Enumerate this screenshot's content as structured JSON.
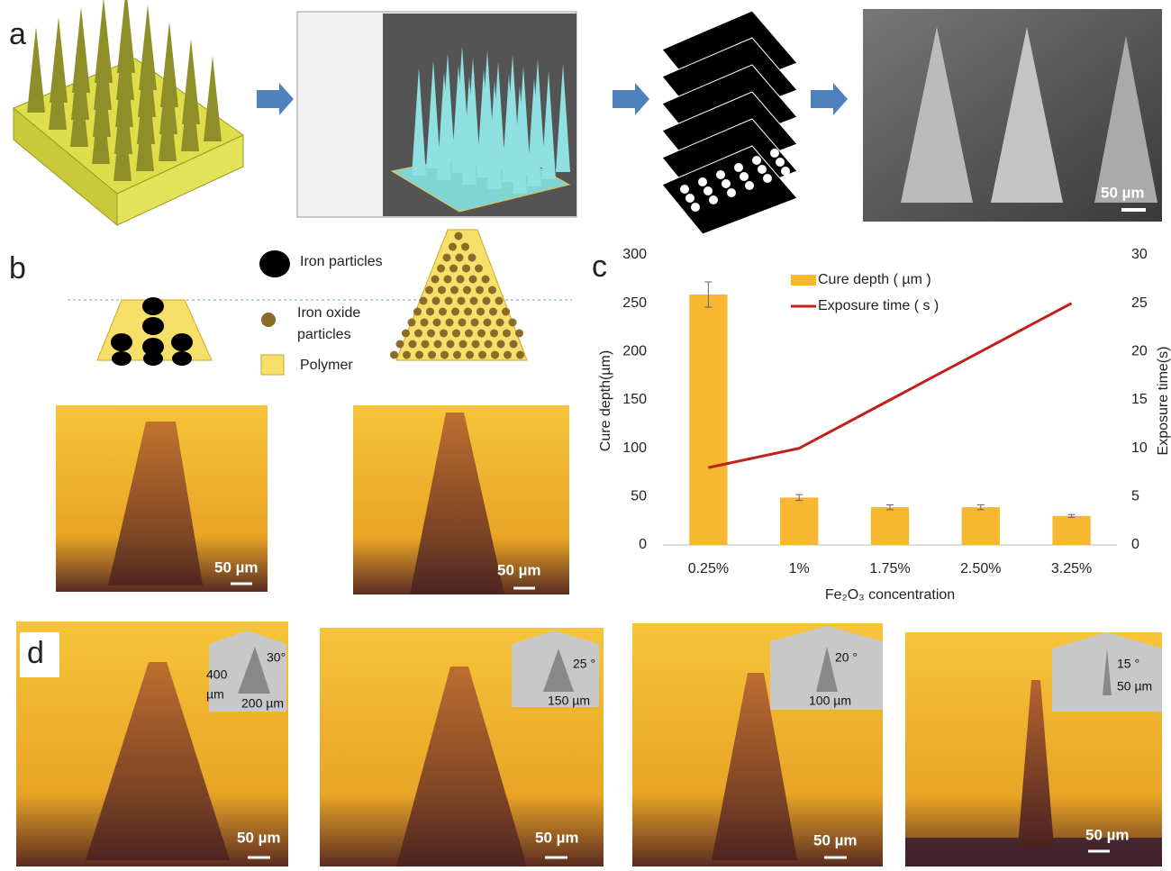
{
  "panel_labels": [
    "a",
    "b",
    "c",
    "d"
  ],
  "panel_a": {
    "scale_label": "50 µm"
  },
  "panel_b": {
    "legend": {
      "iron": "Iron particles",
      "iron_oxide": [
        "Iron oxide",
        "particles"
      ],
      "polymer": "Polymer"
    },
    "scale_labels": [
      "50 µm",
      "50 µm"
    ]
  },
  "panel_d": {
    "insets": [
      {
        "angle": "30°",
        "height": [
          "400",
          "µm"
        ],
        "width": "200 µm"
      },
      {
        "angle": "25 °",
        "width": "150 µm"
      },
      {
        "angle": "20 °",
        "width": "100 µm"
      },
      {
        "angle": "15 °",
        "width": "50 µm"
      }
    ],
    "scale_labels": [
      "50 µm",
      "50 µm",
      "50 µm",
      "50 µm"
    ]
  },
  "chart_data": {
    "type": "bar-line",
    "categories": [
      "0.25%",
      "1%",
      "1.75%",
      "2.50%",
      "3.25%"
    ],
    "x_label": "Fe₂O₃ concentration",
    "y_label": "Cure depth(µm)",
    "y2_label": "Exposure time(s)",
    "ylim": [
      0,
      300
    ],
    "yticks": [
      0,
      50,
      100,
      150,
      200,
      250,
      300
    ],
    "y2lim": [
      0,
      30
    ],
    "y2ticks": [
      0,
      5,
      10,
      15,
      20,
      25,
      30
    ],
    "series": [
      {
        "name": "Cure depth ( µm )",
        "kind": "bar",
        "color": "#f7b731",
        "values": [
          259,
          49,
          39,
          39,
          30
        ],
        "errors": [
          13,
          3,
          2.5,
          2.5,
          1.5
        ]
      },
      {
        "name": "Exposure time ( s )",
        "kind": "line",
        "axis": "y2",
        "color": "#c0211a",
        "values": [
          8,
          10,
          15,
          20,
          25
        ]
      }
    ]
  }
}
